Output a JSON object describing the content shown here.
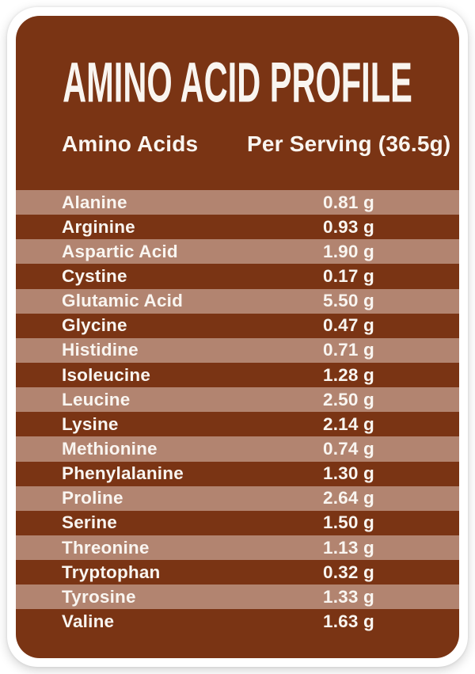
{
  "colors": {
    "brown": "#7A3414",
    "tan": "#B28470",
    "text": "#F9F5F0",
    "frame": "#FFFFFF"
  },
  "card": {
    "title": "AMINO ACID PROFILE",
    "header": {
      "amino_acids": "Amino Acids",
      "per_serving": "Per Serving (36.5g)"
    },
    "rows": [
      {
        "name": "Alanine",
        "value": "0.81 g"
      },
      {
        "name": "Arginine",
        "value": "0.93 g"
      },
      {
        "name": "Aspartic Acid",
        "value": "1.90 g"
      },
      {
        "name": "Cystine",
        "value": "0.17 g"
      },
      {
        "name": "Glutamic Acid",
        "value": "5.50 g"
      },
      {
        "name": "Glycine",
        "value": "0.47 g"
      },
      {
        "name": "Histidine",
        "value": "0.71 g"
      },
      {
        "name": "Isoleucine",
        "value": "1.28 g"
      },
      {
        "name": "Leucine",
        "value": "2.50 g"
      },
      {
        "name": "Lysine",
        "value": "2.14 g"
      },
      {
        "name": "Methionine",
        "value": "0.74 g"
      },
      {
        "name": "Phenylalanine",
        "value": "1.30 g"
      },
      {
        "name": "Proline",
        "value": "2.64 g"
      },
      {
        "name": "Serine",
        "value": "1.50 g"
      },
      {
        "name": "Threonine",
        "value": "1.13 g"
      },
      {
        "name": "Tryptophan",
        "value": "0.32 g"
      },
      {
        "name": "Tyrosine",
        "value": "1.33 g"
      },
      {
        "name": "Valine",
        "value": "1.63 g"
      }
    ]
  }
}
